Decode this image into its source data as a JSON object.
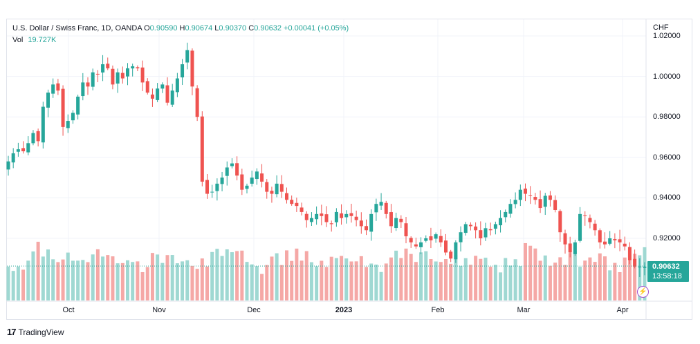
{
  "header": {
    "symbol": "U.S. Dollar / Swiss Franc, 1D, OANDA",
    "o_label": "O",
    "o_value": "0.90590",
    "h_label": "H",
    "h_value": "0.90674",
    "l_label": "L",
    "l_value": "0.90370",
    "c_label": "C",
    "c_value": "0.90632",
    "change": "+0.00041 (+0.05%)",
    "vol_label": "Vol",
    "vol_value": "19.727K"
  },
  "currency_label": "CHF",
  "y_ticks": [
    "1.02000",
    "1.00000",
    "0.98000",
    "0.96000",
    "0.94000",
    "0.92000"
  ],
  "x_ticks": [
    "Oct",
    "Nov",
    "Dec",
    "2023",
    "Feb",
    "Mar",
    "Apr"
  ],
  "price_tag": {
    "price": "0.90632",
    "countdown": "13:58:18"
  },
  "brand": {
    "logo": "17",
    "name": "TradingView"
  },
  "colors": {
    "up": "#26a69a",
    "down": "#ef5350",
    "up_vol": "#9fd8d2",
    "down_vol": "#f5a8a6",
    "grid": "#f0f3fa"
  },
  "chart_data": {
    "type": "candlestick",
    "symbol": "USDCHF",
    "timeframe": "1D",
    "ylim": [
      0.9,
      1.02
    ],
    "y_ticks": [
      1.02,
      1.0,
      0.98,
      0.96,
      0.94,
      0.92
    ],
    "x_ticks": [
      "Oct",
      "Nov",
      "Dec",
      "2023",
      "Feb",
      "Mar",
      "Apr"
    ],
    "last_price": 0.90632,
    "grid": true,
    "close_path": [
      [
        0.958,
        0.962,
        0.964,
        0.963,
        0.967,
        0.972,
        0.968,
        0.985,
        0.992,
        0.996,
        0.993,
        0.975,
        0.978,
        0.982,
        0.99,
        0.997,
        0.995,
        1.002,
        1.001,
        1.006,
        1.004,
        0.996,
        1.002,
        0.999
      ],
      [
        1.004,
        1.005,
        1.004,
        0.997,
        0.992,
        0.989,
        0.994,
        0.996,
        0.987,
        0.993,
        0.999,
        1.006,
        1.013,
        0.995,
        0.98
      ],
      [
        0.948,
        0.942,
        0.943,
        0.947,
        0.95,
        0.955,
        0.957,
        0.951,
        0.944,
        0.946,
        0.95,
        0.953,
        0.948,
        0.943,
        0.942,
        0.947,
        0.943,
        0.939,
        0.937,
        0.936,
        0.933,
        0.929,
        0.93,
        0.932,
        0.931,
        0.928
      ],
      [
        0.927,
        0.933,
        0.93,
        0.932,
        0.931,
        0.929,
        0.926,
        0.924,
        0.932,
        0.937,
        0.938,
        0.932,
        0.926,
        0.93,
        0.928,
        0.921,
        0.918,
        0.916,
        0.918,
        0.92,
        0.919,
        0.922,
        0.918,
        0.913,
        0.91
      ],
      [
        0.918,
        0.923,
        0.927,
        0.926,
        0.924,
        0.92,
        0.925,
        0.924,
        0.927,
        0.93,
        0.933,
        0.937,
        0.939,
        0.944,
        0.942,
        0.941,
        0.939,
        0.935,
        0.941,
        0.939,
        0.934
      ],
      [
        0.923,
        0.917,
        0.913,
        0.918,
        0.932,
        0.931,
        0.928,
        0.924,
        0.918,
        0.917,
        0.92,
        0.919,
        0.918,
        0.916,
        0.909,
        0.906,
        0.906,
        0.906
      ]
    ],
    "volume": {
      "unit": "relative",
      "levels": [
        0.55,
        0.45,
        0.5,
        0.38,
        0.55,
        0.62,
        0.78,
        0.6,
        0.82,
        0.72,
        0.68,
        0.6,
        0.65,
        0.58,
        0.52,
        0.6,
        0.55,
        0.62,
        0.68,
        0.58,
        0.75,
        0.6,
        0.68,
        0.65
      ]
    }
  }
}
